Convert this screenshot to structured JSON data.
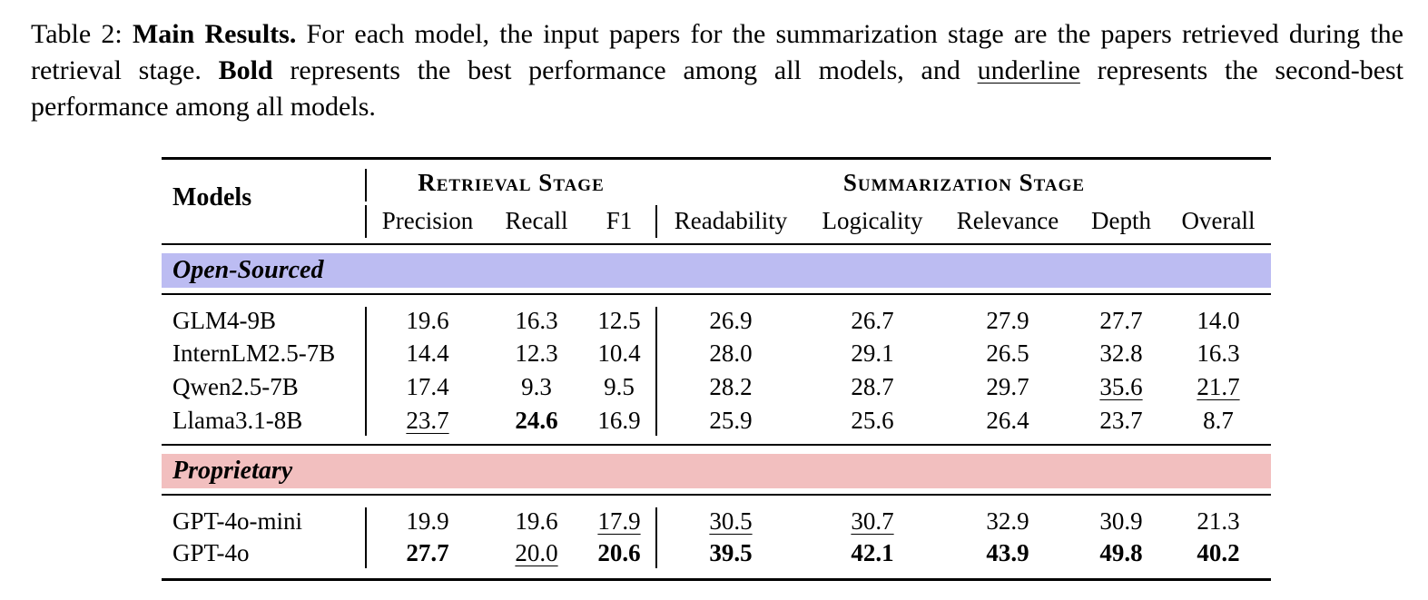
{
  "caption": {
    "label": "Table 2:",
    "title": "Main Results.",
    "text1": "For each model, the input papers for the summarization stage are the papers retrieved during the retrieval stage.",
    "bold_word": "Bold",
    "text2": "represents the best performance among all models, and",
    "underline_word": "underline",
    "text3": "represents the second-best performance among all models."
  },
  "table": {
    "models_header": "Models",
    "retrieval_stage": "Retrieval Stage",
    "summarization_stage": "Summarization Stage",
    "columns": [
      "Precision",
      "Recall",
      "F1",
      "Readability",
      "Logicality",
      "Relevance",
      "Depth",
      "Overall"
    ],
    "groups": [
      {
        "name": "Open-Sourced",
        "color": "#bcbcf2",
        "rows": [
          {
            "model": "GLM4-9B",
            "values": [
              "19.6",
              "16.3",
              "12.5",
              "26.9",
              "26.7",
              "27.9",
              "27.7",
              "14.0"
            ],
            "style": [
              "",
              "",
              "",
              "",
              "",
              "",
              "",
              ""
            ]
          },
          {
            "model": "InternLM2.5-7B",
            "values": [
              "14.4",
              "12.3",
              "10.4",
              "28.0",
              "29.1",
              "26.5",
              "32.8",
              "16.3"
            ],
            "style": [
              "",
              "",
              "",
              "",
              "",
              "",
              "",
              ""
            ]
          },
          {
            "model": "Qwen2.5-7B",
            "values": [
              "17.4",
              "9.3",
              "9.5",
              "28.2",
              "28.7",
              "29.7",
              "35.6",
              "21.7"
            ],
            "style": [
              "",
              "",
              "",
              "",
              "",
              "",
              "u",
              "u"
            ]
          },
          {
            "model": "Llama3.1-8B",
            "values": [
              "23.7",
              "24.6",
              "16.9",
              "25.9",
              "25.6",
              "26.4",
              "23.7",
              "8.7"
            ],
            "style": [
              "u",
              "b",
              "",
              "",
              "",
              "",
              "",
              ""
            ]
          }
        ]
      },
      {
        "name": "Proprietary",
        "color": "#f2bfbf",
        "rows": [
          {
            "model": "GPT-4o-mini",
            "values": [
              "19.9",
              "19.6",
              "17.9",
              "30.5",
              "30.7",
              "32.9",
              "30.9",
              "21.3"
            ],
            "style": [
              "",
              "",
              "u",
              "u",
              "u",
              "",
              "",
              ""
            ]
          },
          {
            "model": "GPT-4o",
            "values": [
              "27.7",
              "20.0",
              "20.6",
              "39.5",
              "42.1",
              "43.9",
              "49.8",
              "40.2"
            ],
            "style": [
              "b",
              "u",
              "b",
              "b",
              "b",
              "b",
              "b",
              "b"
            ]
          }
        ]
      }
    ]
  }
}
